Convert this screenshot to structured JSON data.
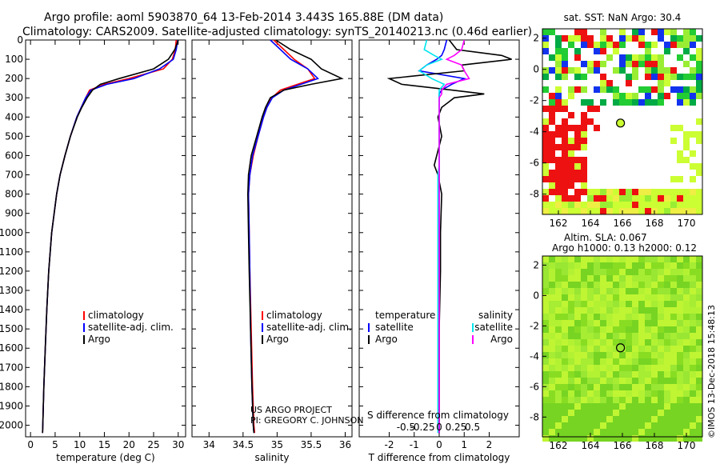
{
  "header": {
    "title_line1": "Argo profile: aoml 5903870_64 13-Feb-2014 3.443S 165.88E (DM data)",
    "title_line2": "Climatology: CARS2009. Satellite-adjusted climatology: synTS_20140213.nc (0.46d earlier)"
  },
  "credits": {
    "project": "US ARGO PROJECT",
    "pi": "PI: GREGORY C. JOHNSON",
    "imos": "©IMOS 13-Dec-2018 15:48:13"
  },
  "colors": {
    "climatology": "#ff0000",
    "satellite": "#0000ff",
    "argo": "#000000",
    "sal_satellite": "#00e5ee",
    "sal_argo": "#ff00ff"
  },
  "depth_ticks": [
    0,
    100,
    200,
    300,
    400,
    500,
    600,
    700,
    800,
    900,
    1000,
    1100,
    1200,
    1300,
    1400,
    1500,
    1600,
    1700,
    1800,
    1900,
    2000
  ],
  "chart_data": [
    {
      "type": "line",
      "name": "temperature-profile",
      "xlabel": "temperature (deg C)",
      "ylabel": "depth",
      "xlim": [
        -1,
        31.5
      ],
      "ylim": [
        2060,
        0
      ],
      "xticks": [
        0,
        5,
        10,
        15,
        20,
        25,
        30
      ],
      "xtick_labels": [
        "0",
        "5",
        "10",
        "15",
        "20",
        "25",
        "30"
      ],
      "legend": [
        "climatology",
        "satellite-adj. clim.",
        "Argo"
      ],
      "depth": [
        0,
        50,
        100,
        150,
        200,
        230,
        260,
        300,
        350,
        400,
        500,
        600,
        700,
        800,
        900,
        1000,
        1200,
        1400,
        1600,
        1800,
        2000,
        2040
      ],
      "series": [
        {
          "name": "climatology",
          "color": "#ff0000",
          "values": [
            29.6,
            29.4,
            28.8,
            27.0,
            20.0,
            15.0,
            12.0,
            11.2,
            10.3,
            9.4,
            8.1,
            7.0,
            6.0,
            5.3,
            4.8,
            4.3,
            3.7,
            3.3,
            3.0,
            2.7,
            2.5,
            2.45
          ]
        },
        {
          "name": "satellite-adj. clim.",
          "color": "#0000ff",
          "values": [
            29.9,
            29.6,
            29.0,
            26.2,
            21.0,
            15.5,
            12.3,
            11.2,
            10.3,
            9.4,
            8.1,
            7.0,
            6.0,
            5.3,
            4.8,
            4.3,
            3.7,
            3.3,
            3.0,
            2.7,
            2.5,
            2.45
          ]
        },
        {
          "name": "Argo",
          "color": "#000000",
          "values": [
            30.0,
            29.3,
            28.0,
            25.0,
            18.0,
            14.2,
            12.6,
            11.5,
            10.4,
            9.5,
            8.1,
            7.0,
            6.0,
            5.3,
            4.8,
            4.3,
            3.7,
            3.3,
            3.0,
            2.7,
            2.5,
            2.45
          ]
        }
      ]
    },
    {
      "type": "line",
      "name": "salinity-profile",
      "xlabel": "salinity",
      "xlim": [
        33.75,
        36.1
      ],
      "ylim": [
        2060,
        0
      ],
      "xticks": [
        34,
        34.5,
        35,
        35.5,
        36
      ],
      "xtick_labels": [
        "34",
        "34.5",
        "35",
        "35.5",
        "36"
      ],
      "legend": [
        "climatology",
        "satellite-adj. clim.",
        "Argo"
      ],
      "depth": [
        0,
        50,
        100,
        150,
        200,
        230,
        260,
        300,
        350,
        400,
        500,
        600,
        700,
        800,
        1000,
        1200,
        1500,
        1800,
        2000,
        2040
      ],
      "series": [
        {
          "name": "climatology",
          "color": "#ff0000",
          "values": [
            34.95,
            35.1,
            35.25,
            35.45,
            35.55,
            35.3,
            35.05,
            34.92,
            34.85,
            34.8,
            34.72,
            34.65,
            34.6,
            34.58,
            34.59,
            34.6,
            34.62,
            34.64,
            34.66,
            34.67
          ]
        },
        {
          "name": "satellite-adj. clim.",
          "color": "#0000ff",
          "values": [
            34.9,
            35.05,
            35.2,
            35.45,
            35.6,
            35.35,
            35.1,
            34.93,
            34.85,
            34.8,
            34.72,
            34.64,
            34.6,
            34.58,
            34.59,
            34.6,
            34.61,
            34.63,
            34.65,
            34.66
          ]
        },
        {
          "name": "Argo",
          "color": "#000000",
          "values": [
            34.98,
            35.2,
            35.5,
            35.65,
            35.95,
            35.5,
            35.1,
            34.9,
            34.83,
            34.78,
            34.7,
            34.62,
            34.58,
            34.57,
            34.58,
            34.59,
            34.61,
            34.63,
            34.65,
            34.66
          ]
        }
      ]
    },
    {
      "type": "line",
      "name": "difference-profile",
      "xlabel": "T difference from climatology",
      "x2label": "S difference from climatology",
      "xlim": [
        -3.2,
        3.2
      ],
      "ylim": [
        2060,
        0
      ],
      "xticks": [
        -2,
        -1,
        0,
        1,
        2
      ],
      "xtick_labels": [
        "-2",
        "-1",
        "0",
        "1",
        "2"
      ],
      "x2ticks": [
        -1.33,
        -0.67,
        0,
        0.67,
        1.33
      ],
      "x2tick_labels": [
        "-0.5",
        "-0.25",
        "0",
        "0.25",
        "0.5"
      ],
      "legend_temperature": [
        "temperature",
        "satellite",
        "Argo"
      ],
      "legend_salinity": [
        "salinity",
        "satellite",
        "Argo"
      ],
      "depth": [
        0,
        50,
        80,
        100,
        130,
        160,
        200,
        230,
        260,
        280,
        300,
        350,
        400,
        500,
        600,
        650,
        700,
        800,
        1000,
        1200,
        1500,
        1800,
        2000,
        2040
      ],
      "series": [
        {
          "name": "T satellite",
          "color": "#0000ff",
          "values": [
            0.3,
            0.2,
            0.1,
            -0.1,
            -0.5,
            -0.8,
            1.0,
            0.5,
            0.1,
            0.0,
            0.0,
            0.0,
            0.0,
            0.0,
            0.0,
            0.0,
            0.0,
            0.0,
            0.0,
            0.0,
            0.0,
            0.0,
            0.0,
            0.0
          ]
        },
        {
          "name": "T Argo",
          "color": "#000000",
          "values": [
            0.4,
            0.7,
            2.5,
            2.9,
            0.9,
            1.0,
            -2.0,
            -1.5,
            0.5,
            1.8,
            0.6,
            0.1,
            -0.05,
            0.1,
            -0.1,
            -0.2,
            -0.05,
            0.1,
            0.05,
            0.05,
            0.0,
            0.0,
            0.0,
            0.0
          ]
        },
        {
          "name": "S satellite",
          "color": "#00e5ee",
          "values": [
            -0.5,
            -0.6,
            -0.2,
            0.1,
            -0.5,
            -0.8,
            -0.3,
            0.2,
            0.0,
            0.0,
            0.0,
            0.0,
            0.0,
            0.0,
            0.0,
            0.0,
            -0.05,
            -0.05,
            -0.05,
            -0.05,
            -0.05,
            -0.05,
            -0.05,
            -0.05
          ]
        },
        {
          "name": "S Argo",
          "color": "#ff00ff",
          "values": [
            1.0,
            0.9,
            0.6,
            0.3,
            0.9,
            1.0,
            1.2,
            0.3,
            0.1,
            0.1,
            0.0,
            0.0,
            0.0,
            0.0,
            0.0,
            0.0,
            0.0,
            0.0,
            0.0,
            0.0,
            0.0,
            0.0,
            0.0,
            0.0
          ]
        }
      ]
    },
    {
      "type": "heatmap",
      "name": "sst-map",
      "title": "sat. SST: NaN Argo: 30.4",
      "xlim": [
        161,
        171
      ],
      "ylim": [
        -9.3,
        2.6
      ],
      "xticks": [
        162,
        164,
        166,
        168,
        170
      ],
      "yticks": [
        2,
        0,
        -2,
        -4,
        -6,
        -8
      ],
      "argo_position": [
        165.88,
        -3.443
      ]
    },
    {
      "type": "heatmap",
      "name": "sla-map",
      "title_line1": "Altim. SLA: 0.067",
      "title_line2": "Argo h1000: 0.13 h2000: 0.12",
      "xlim": [
        161,
        171
      ],
      "ylim": [
        -9.3,
        2.6
      ],
      "xticks": [
        162,
        164,
        166,
        168,
        170
      ],
      "yticks": [
        2,
        0,
        -2,
        -4,
        -6,
        -8
      ],
      "argo_position": [
        165.88,
        -3.443
      ]
    }
  ]
}
